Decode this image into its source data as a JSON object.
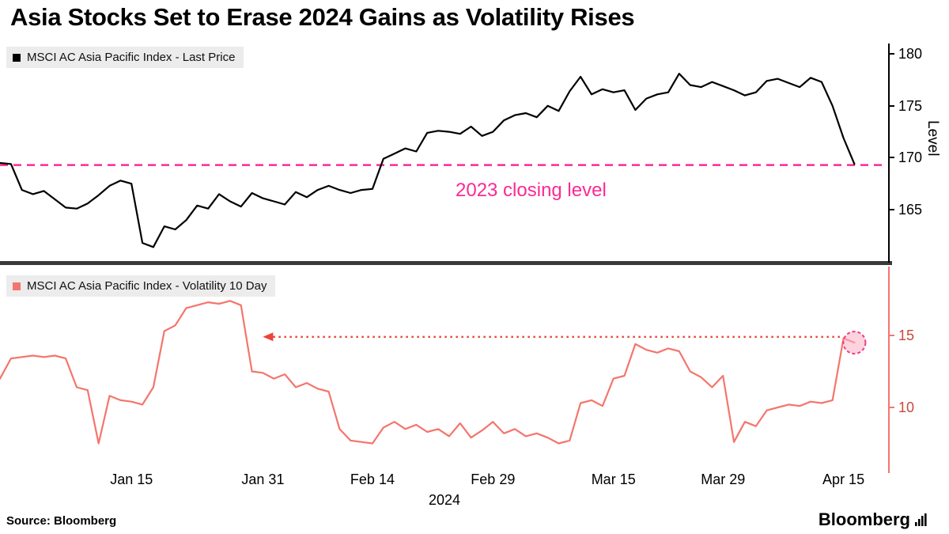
{
  "page": {
    "title": "Asia Stocks Set to Erase 2024 Gains as Volatility Rises",
    "source": "Source: Bloomberg",
    "brand": "Bloomberg"
  },
  "colors": {
    "price_line": "#000000",
    "volatility_line": "#f4756d",
    "reference_pink": "#fb2a95",
    "divider": "#3a3a3a",
    "legend_bg": "#ececec",
    "vol_axis_text": "#c9473e",
    "arrow": "#e8453c",
    "endpoint_fill": "#f9aec4",
    "endpoint_stroke": "#ee3d86"
  },
  "x_axis": {
    "year": "2024",
    "domain_count": 81,
    "x_description": "Business days, early January 2024 to April 16, 2024",
    "ticks": [
      {
        "label": "Jan 15",
        "index": 12
      },
      {
        "label": "Jan 31",
        "index": 24
      },
      {
        "label": "Feb 14",
        "index": 34
      },
      {
        "label": "Feb 29",
        "index": 45
      },
      {
        "label": "Mar 15",
        "index": 56
      },
      {
        "label": "Mar 29",
        "index": 66
      },
      {
        "label": "Apr 15",
        "index": 77
      }
    ]
  },
  "chart_data": [
    {
      "type": "line",
      "panel": "price",
      "series_name": "MSCI AC Asia Pacific Index - Last Price",
      "color": "#000000",
      "ylabel": "Level",
      "ylim": [
        159.9,
        181.0
      ],
      "yticks": [
        180,
        175,
        170,
        165
      ],
      "reference_line": {
        "value": 169.3,
        "label": "2023 closing level",
        "color": "#fb2a95",
        "style": "dashed"
      },
      "values": [
        169.5,
        169.4,
        166.9,
        166.5,
        166.8,
        166.0,
        165.2,
        165.1,
        165.6,
        166.4,
        167.3,
        167.8,
        167.5,
        161.8,
        161.4,
        163.4,
        163.1,
        164.0,
        165.4,
        165.1,
        166.5,
        165.8,
        165.3,
        166.6,
        166.1,
        165.8,
        165.5,
        166.7,
        166.2,
        166.9,
        167.3,
        166.9,
        166.6,
        166.9,
        167.0,
        169.9,
        170.4,
        170.9,
        170.6,
        172.4,
        172.6,
        172.5,
        172.3,
        173.0,
        172.1,
        172.5,
        173.6,
        174.1,
        174.3,
        173.9,
        175.0,
        174.5,
        176.4,
        177.8,
        176.1,
        176.6,
        176.3,
        176.5,
        174.6,
        175.7,
        176.1,
        176.3,
        178.1,
        177.0,
        176.8,
        177.3,
        176.9,
        176.5,
        176.0,
        176.3,
        177.4,
        177.6,
        177.2,
        176.8,
        177.7,
        177.3,
        175.0,
        171.9,
        169.4
      ]
    },
    {
      "type": "line",
      "panel": "volatility",
      "series_name": "MSCI AC Asia Pacific Index - Volatility 10 Day",
      "color": "#f4756d",
      "ylim": [
        5.88,
        19.78
      ],
      "yticks": [
        15,
        10
      ],
      "annotation_arrow": {
        "y": 14.9,
        "to_index": 24,
        "from_index": 77,
        "style": "dotted",
        "direction": "left"
      },
      "endpoint_marker": {
        "index": 78,
        "value": 14.5
      },
      "values": [
        12.0,
        13.4,
        13.5,
        13.6,
        13.5,
        13.6,
        13.4,
        11.4,
        11.2,
        7.5,
        10.8,
        10.5,
        10.4,
        10.2,
        11.4,
        15.3,
        15.7,
        16.9,
        17.1,
        17.3,
        17.2,
        17.4,
        17.1,
        12.5,
        12.4,
        12.0,
        12.3,
        11.4,
        11.7,
        11.3,
        11.1,
        8.5,
        7.7,
        7.6,
        7.5,
        8.6,
        9.0,
        8.5,
        8.8,
        8.3,
        8.5,
        8.0,
        8.9,
        7.9,
        8.4,
        9.0,
        8.2,
        8.5,
        8.0,
        8.2,
        7.9,
        7.5,
        7.7,
        10.3,
        10.5,
        10.1,
        12.0,
        12.2,
        14.4,
        14.0,
        13.8,
        14.1,
        13.9,
        12.5,
        12.1,
        11.4,
        12.2,
        7.6,
        9.0,
        8.7,
        9.8,
        10.0,
        10.2,
        10.1,
        10.4,
        10.3,
        10.5,
        14.8,
        14.5
      ]
    }
  ]
}
